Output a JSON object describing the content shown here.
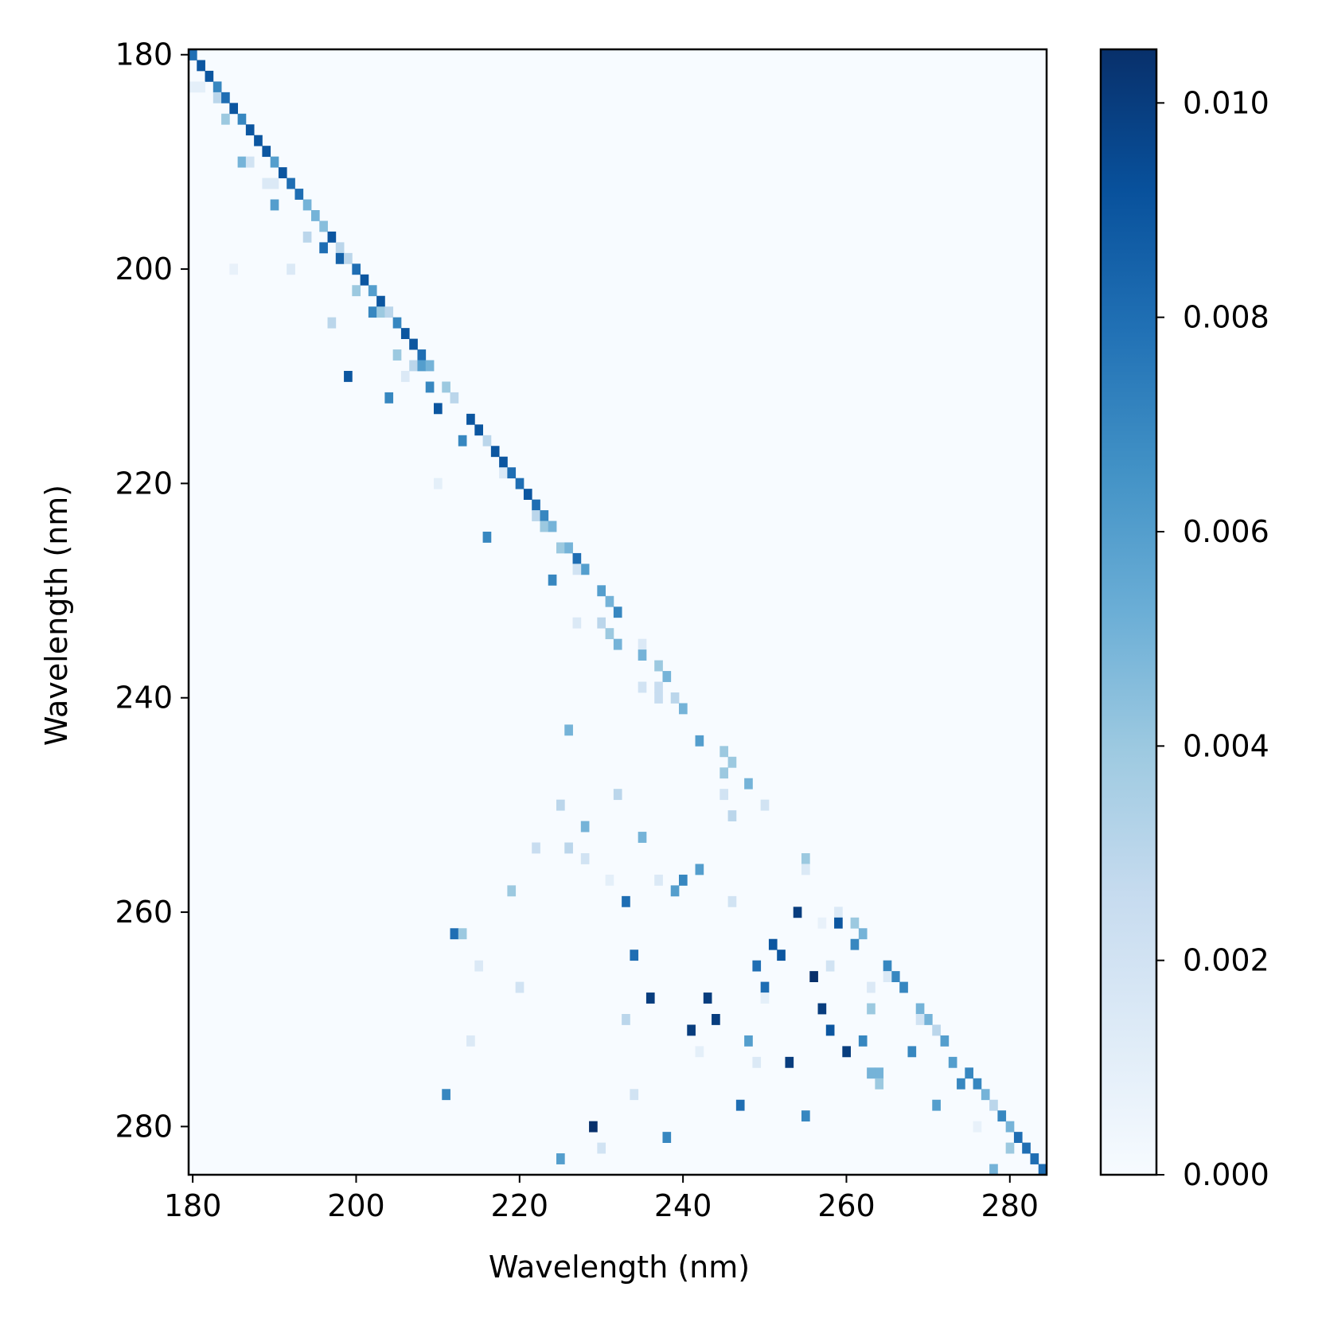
{
  "chart_data": {
    "type": "heatmap",
    "title": "",
    "xlabel": "Wavelength (nm)",
    "ylabel": "Wavelength (nm)",
    "x_range": [
      179.5,
      284.5
    ],
    "y_range": [
      179.5,
      284.5
    ],
    "y_inverted": true,
    "x_ticks": [
      180,
      200,
      220,
      240,
      260,
      280
    ],
    "y_ticks": [
      180,
      200,
      220,
      240,
      260,
      280
    ],
    "colormap": "Blues",
    "colormap_stops": [
      "#f7fbff",
      "#deebf7",
      "#c6dbef",
      "#9ecae1",
      "#6baed6",
      "#4292c6",
      "#2171b5",
      "#08519c",
      "#08306b"
    ],
    "background_value": 0.0,
    "colorbar": {
      "min": 0.0,
      "max": 0.0105,
      "ticks": [
        0.0,
        0.002,
        0.004,
        0.006,
        0.008,
        0.01
      ],
      "tick_labels": [
        "0.000",
        "0.002",
        "0.004",
        "0.006",
        "0.008",
        "0.010"
      ]
    },
    "cells": [
      [
        180,
        180,
        0.008
      ],
      [
        181,
        181,
        0.009
      ],
      [
        182,
        182,
        0.009
      ],
      [
        181,
        183,
        0.001
      ],
      [
        180,
        183,
        0.001
      ],
      [
        183,
        183,
        0.007
      ],
      [
        183,
        184,
        0.003
      ],
      [
        184,
        184,
        0.008
      ],
      [
        185,
        185,
        0.009
      ],
      [
        184,
        186,
        0.004
      ],
      [
        186,
        186,
        0.007
      ],
      [
        187,
        187,
        0.009
      ],
      [
        188,
        188,
        0.009
      ],
      [
        189,
        189,
        0.009
      ],
      [
        186,
        190,
        0.005
      ],
      [
        187,
        190,
        0.002
      ],
      [
        190,
        190,
        0.006
      ],
      [
        191,
        191,
        0.009
      ],
      [
        189,
        192,
        0.0015
      ],
      [
        190,
        192,
        0.0015
      ],
      [
        192,
        192,
        0.008
      ],
      [
        193,
        193,
        0.008
      ],
      [
        190,
        194,
        0.006
      ],
      [
        194,
        194,
        0.005
      ],
      [
        195,
        195,
        0.005
      ],
      [
        196,
        196,
        0.0045
      ],
      [
        194,
        197,
        0.003
      ],
      [
        197,
        197,
        0.009
      ],
      [
        196,
        198,
        0.008
      ],
      [
        198,
        198,
        0.003
      ],
      [
        198,
        199,
        0.0085
      ],
      [
        199,
        199,
        0.003
      ],
      [
        185,
        200,
        0.0008
      ],
      [
        192,
        200,
        0.0015
      ],
      [
        200,
        200,
        0.008
      ],
      [
        201,
        201,
        0.009
      ],
      [
        200,
        202,
        0.004
      ],
      [
        202,
        202,
        0.006
      ],
      [
        203,
        203,
        0.009
      ],
      [
        202,
        204,
        0.007
      ],
      [
        203,
        204,
        0.004
      ],
      [
        204,
        204,
        0.003
      ],
      [
        197,
        205,
        0.003
      ],
      [
        205,
        205,
        0.007
      ],
      [
        206,
        206,
        0.009
      ],
      [
        207,
        207,
        0.009
      ],
      [
        205,
        208,
        0.004
      ],
      [
        208,
        208,
        0.008
      ],
      [
        207,
        209,
        0.003
      ],
      [
        208,
        209,
        0.006
      ],
      [
        209,
        209,
        0.005
      ],
      [
        206,
        210,
        0.0015
      ],
      [
        199,
        210,
        0.009
      ],
      [
        209,
        211,
        0.007
      ],
      [
        211,
        211,
        0.004
      ],
      [
        204,
        212,
        0.007
      ],
      [
        212,
        212,
        0.003
      ],
      [
        210,
        213,
        0.009
      ],
      [
        214,
        214,
        0.009
      ],
      [
        215,
        215,
        0.009
      ],
      [
        213,
        216,
        0.007
      ],
      [
        216,
        216,
        0.003
      ],
      [
        217,
        217,
        0.009
      ],
      [
        218,
        218,
        0.009
      ],
      [
        218,
        219,
        0.0015
      ],
      [
        219,
        219,
        0.008
      ],
      [
        210,
        220,
        0.001
      ],
      [
        220,
        220,
        0.008
      ],
      [
        221,
        221,
        0.009
      ],
      [
        222,
        222,
        0.008
      ],
      [
        222,
        223,
        0.003
      ],
      [
        223,
        223,
        0.007
      ],
      [
        223,
        224,
        0.004
      ],
      [
        224,
        224,
        0.005
      ],
      [
        216,
        225,
        0.007
      ],
      [
        225,
        226,
        0.004
      ],
      [
        226,
        226,
        0.005
      ],
      [
        227,
        227,
        0.008
      ],
      [
        228,
        228,
        0.006
      ],
      [
        227,
        228,
        0.002
      ],
      [
        224,
        229,
        0.007
      ],
      [
        230,
        230,
        0.006
      ],
      [
        231,
        231,
        0.005
      ],
      [
        232,
        232,
        0.007
      ],
      [
        230,
        233,
        0.003
      ],
      [
        227,
        233,
        0.0015
      ],
      [
        231,
        234,
        0.004
      ],
      [
        232,
        235,
        0.005
      ],
      [
        235,
        235,
        0.0015
      ],
      [
        235,
        236,
        0.005
      ],
      [
        237,
        237,
        0.004
      ],
      [
        238,
        238,
        0.005
      ],
      [
        235,
        239,
        0.002
      ],
      [
        237,
        239,
        0.0025
      ],
      [
        237,
        240,
        0.0025
      ],
      [
        239,
        240,
        0.003
      ],
      [
        240,
        241,
        0.005
      ],
      [
        226,
        243,
        0.005
      ],
      [
        242,
        244,
        0.006
      ],
      [
        245,
        245,
        0.004
      ],
      [
        246,
        246,
        0.004
      ],
      [
        245,
        247,
        0.004
      ],
      [
        248,
        248,
        0.005
      ],
      [
        245,
        249,
        0.002
      ],
      [
        232,
        249,
        0.003
      ],
      [
        250,
        250,
        0.002
      ],
      [
        225,
        250,
        0.003
      ],
      [
        246,
        251,
        0.003
      ],
      [
        228,
        252,
        0.005
      ],
      [
        235,
        253,
        0.005
      ],
      [
        222,
        254,
        0.0025
      ],
      [
        226,
        254,
        0.003
      ],
      [
        255,
        255,
        0.004
      ],
      [
        228,
        255,
        0.002
      ],
      [
        255,
        256,
        0.0015
      ],
      [
        242,
        256,
        0.006
      ],
      [
        231,
        257,
        0.001
      ],
      [
        237,
        257,
        0.0015
      ],
      [
        240,
        257,
        0.007
      ],
      [
        219,
        258,
        0.004
      ],
      [
        239,
        258,
        0.006
      ],
      [
        233,
        259,
        0.008
      ],
      [
        246,
        259,
        0.002
      ],
      [
        254,
        260,
        0.01
      ],
      [
        259,
        260,
        0.0015
      ],
      [
        257,
        261,
        0.0008
      ],
      [
        259,
        261,
        0.009
      ],
      [
        261,
        261,
        0.004
      ],
      [
        212,
        262,
        0.008
      ],
      [
        213,
        262,
        0.004
      ],
      [
        262,
        262,
        0.005
      ],
      [
        261,
        263,
        0.007
      ],
      [
        251,
        263,
        0.009
      ],
      [
        252,
        264,
        0.009
      ],
      [
        234,
        264,
        0.008
      ],
      [
        215,
        265,
        0.0015
      ],
      [
        249,
        265,
        0.008
      ],
      [
        258,
        265,
        0.002
      ],
      [
        265,
        265,
        0.007
      ],
      [
        266,
        266,
        0.007
      ],
      [
        256,
        266,
        0.0105
      ],
      [
        265,
        266,
        0.0015
      ],
      [
        220,
        267,
        0.002
      ],
      [
        250,
        267,
        0.008
      ],
      [
        263,
        267,
        0.0015
      ],
      [
        267,
        267,
        0.007
      ],
      [
        236,
        268,
        0.01
      ],
      [
        243,
        268,
        0.01
      ],
      [
        250,
        268,
        0.001
      ],
      [
        257,
        269,
        0.01
      ],
      [
        263,
        269,
        0.004
      ],
      [
        269,
        269,
        0.005
      ],
      [
        233,
        270,
        0.003
      ],
      [
        244,
        270,
        0.01
      ],
      [
        270,
        270,
        0.005
      ],
      [
        269,
        270,
        0.002
      ],
      [
        241,
        271,
        0.01
      ],
      [
        258,
        271,
        0.009
      ],
      [
        271,
        271,
        0.003
      ],
      [
        214,
        272,
        0.0015
      ],
      [
        248,
        272,
        0.006
      ],
      [
        262,
        272,
        0.007
      ],
      [
        272,
        272,
        0.006
      ],
      [
        242,
        273,
        0.001
      ],
      [
        260,
        273,
        0.01
      ],
      [
        268,
        273,
        0.007
      ],
      [
        249,
        274,
        0.0015
      ],
      [
        253,
        274,
        0.01
      ],
      [
        273,
        274,
        0.006
      ],
      [
        263,
        275,
        0.005
      ],
      [
        264,
        275,
        0.005
      ],
      [
        275,
        275,
        0.007
      ],
      [
        264,
        276,
        0.004
      ],
      [
        274,
        276,
        0.007
      ],
      [
        276,
        276,
        0.007
      ],
      [
        211,
        277,
        0.007
      ],
      [
        234,
        277,
        0.002
      ],
      [
        277,
        277,
        0.005
      ],
      [
        247,
        278,
        0.008
      ],
      [
        271,
        278,
        0.006
      ],
      [
        278,
        278,
        0.003
      ],
      [
        255,
        279,
        0.007
      ],
      [
        279,
        279,
        0.007
      ],
      [
        229,
        280,
        0.0105
      ],
      [
        276,
        280,
        0.0008
      ],
      [
        280,
        280,
        0.005
      ],
      [
        238,
        281,
        0.007
      ],
      [
        281,
        281,
        0.008
      ],
      [
        230,
        282,
        0.002
      ],
      [
        280,
        282,
        0.004
      ],
      [
        282,
        282,
        0.008
      ],
      [
        225,
        283,
        0.006
      ],
      [
        283,
        283,
        0.008
      ],
      [
        278,
        284,
        0.005
      ],
      [
        284,
        284,
        0.008
      ]
    ]
  }
}
